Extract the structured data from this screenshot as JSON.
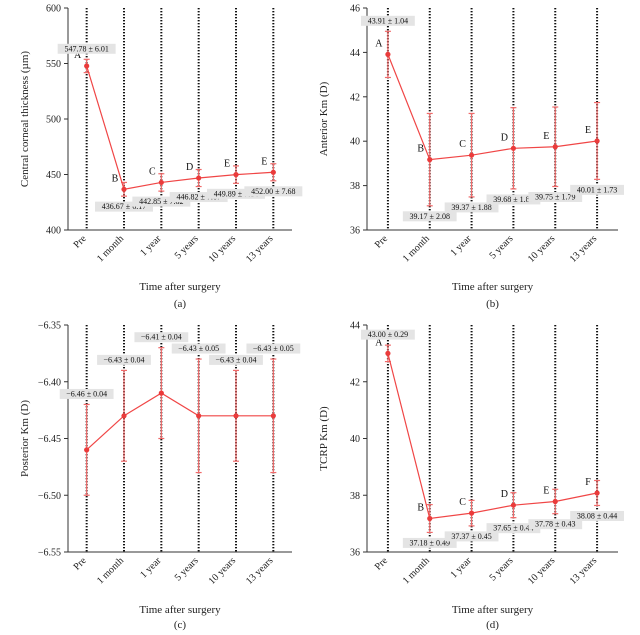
{
  "chart_data": [
    {
      "type": "line",
      "panel": "(a)",
      "categories": [
        "Pre",
        "1 month",
        "1 year",
        "5 years",
        "10 years",
        "13 years"
      ],
      "values": [
        547.78,
        436.67,
        442.85,
        446.82,
        449.89,
        452.0
      ],
      "errors": [
        6.01,
        6.17,
        7.82,
        7.67,
        7.84,
        7.68
      ],
      "labels": [
        "547.78 ± 6.01",
        "436.67 ± 6.17",
        "442.85 ± 7.82",
        "446.82 ± 7.67",
        "449.89 ± 7.84",
        "452.00 ± 7.68"
      ],
      "letters": [
        "A",
        "B",
        "C",
        "D",
        "E",
        "E"
      ],
      "label_side": [
        "above",
        "below",
        "below",
        "below",
        "below",
        "below"
      ],
      "ylabel": "Central corneal thickness (µm)",
      "xlabel": "Time after surgery",
      "ylim": [
        400,
        600
      ],
      "yticks": [
        400,
        450,
        500,
        550,
        600
      ],
      "ytick_labels": [
        "400",
        "450",
        "500",
        "550",
        "600"
      ]
    },
    {
      "type": "line",
      "panel": "(b)",
      "categories": [
        "Pre",
        "1 month",
        "1 year",
        "5 years",
        "10 years",
        "13 years"
      ],
      "values": [
        43.91,
        39.17,
        39.37,
        39.68,
        39.75,
        40.01
      ],
      "errors": [
        1.04,
        2.08,
        1.88,
        1.83,
        1.79,
        1.73
      ],
      "labels": [
        "43.91 ± 1.04",
        "39.17 ± 2.08",
        "39.37 ± 1.88",
        "39.68 ± 1.83",
        "39.75 ± 1.79",
        "40.01 ± 1.73"
      ],
      "letters": [
        "A",
        "B",
        "C",
        "D",
        "E",
        "E"
      ],
      "label_side": [
        "above",
        "below",
        "below",
        "below",
        "below",
        "below"
      ],
      "ylabel": "Anterior Km (D)",
      "xlabel": "Time after surgery",
      "ylim": [
        36,
        46
      ],
      "yticks": [
        36,
        38,
        40,
        42,
        44,
        46
      ],
      "ytick_labels": [
        "36",
        "38",
        "40",
        "42",
        "44",
        "46"
      ]
    },
    {
      "type": "line",
      "panel": "(c)",
      "categories": [
        "Pre",
        "1 month",
        "1 year",
        "5 years",
        "10 years",
        "13 years"
      ],
      "values": [
        -6.46,
        -6.43,
        -6.41,
        -6.43,
        -6.43,
        -6.43
      ],
      "errors": [
        0.04,
        0.04,
        0.04,
        0.05,
        0.04,
        0.05
      ],
      "labels": [
        "−6.46 ± 0.04",
        "−6.43 ± 0.04",
        "−6.41 ± 0.04",
        "−6.43 ± 0.05",
        "−6.43 ± 0.04",
        "−6.43 ± 0.05"
      ],
      "letters": [
        "",
        "",
        "",
        "",
        "",
        ""
      ],
      "label_side": [
        "above",
        "above",
        "above",
        "above",
        "above",
        "above"
      ],
      "ylabel": "Posterior Km (D)",
      "xlabel": "Time after surgery",
      "ylim": [
        -6.55,
        -6.35
      ],
      "yticks": [
        -6.55,
        -6.5,
        -6.45,
        -6.4,
        -6.35
      ],
      "ytick_labels": [
        "−6.55",
        "−6.50",
        "−6.45",
        "−6.40",
        "−6.35"
      ]
    },
    {
      "type": "line",
      "panel": "(d)",
      "categories": [
        "Pre",
        "1 month",
        "1 year",
        "5 years",
        "10 years",
        "13 years"
      ],
      "values": [
        43.0,
        37.18,
        37.37,
        37.65,
        37.78,
        38.08
      ],
      "errors": [
        0.29,
        0.49,
        0.45,
        0.44,
        0.43,
        0.44
      ],
      "labels": [
        "43.00 ± 0.29",
        "37.18 ± 0.49",
        "37.37 ± 0.45",
        "37.65 ± 0.44",
        "37.78 ± 0.43",
        "38.08 ± 0.44"
      ],
      "letters": [
        "A",
        "B",
        "C",
        "D",
        "E",
        "F"
      ],
      "label_side": [
        "above",
        "below",
        "below",
        "below",
        "below",
        "below"
      ],
      "ylabel": "TCRP Km (D)",
      "xlabel": "Time after surgery",
      "ylim": [
        36,
        44
      ],
      "yticks": [
        36,
        38,
        40,
        42,
        44
      ],
      "ytick_labels": [
        "36",
        "38",
        "40",
        "42",
        "44"
      ]
    }
  ],
  "colors": {
    "line": "#f04646",
    "marker": "#ea3b3b",
    "errorbar": "#f06a6a",
    "label_bg": "#e4e4e4",
    "dotted_line": "#111111",
    "axis": "#333333"
  }
}
